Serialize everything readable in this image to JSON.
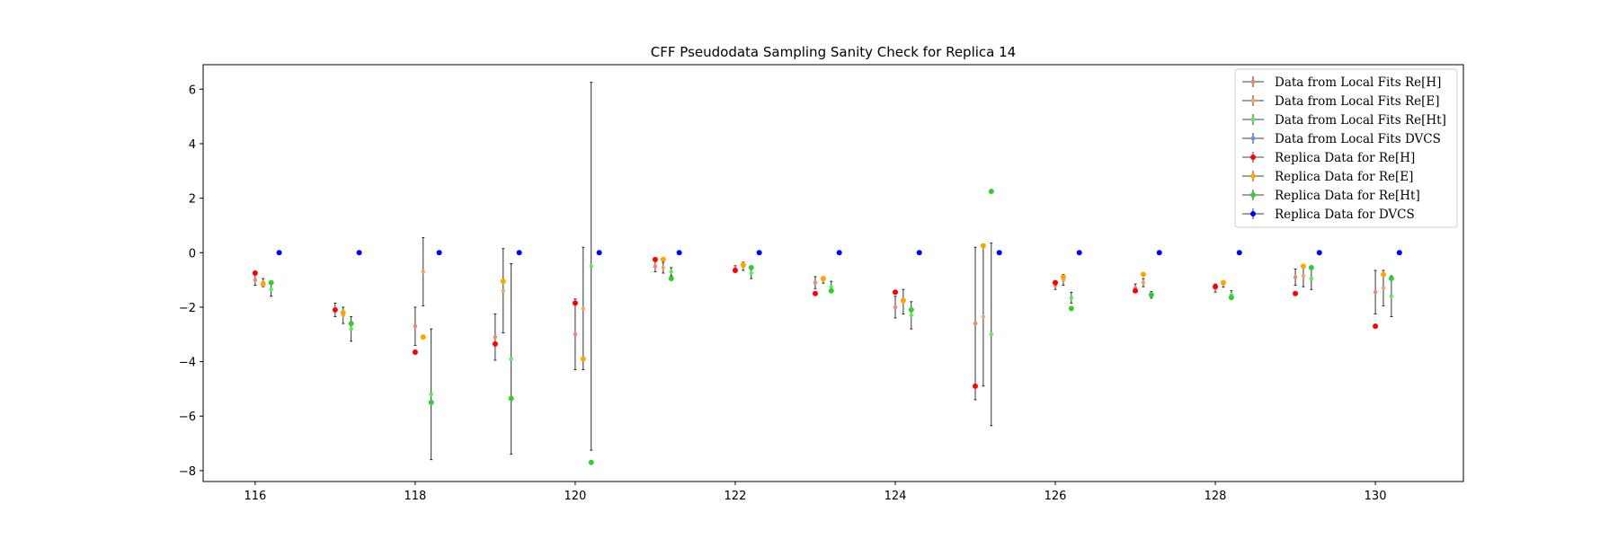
{
  "chart_data": {
    "type": "scatter",
    "title": "CFF Pseudodata Sampling Sanity Check for Replica 14",
    "xlabel": "",
    "ylabel": "",
    "xlim": [
      115.35,
      131.1
    ],
    "ylim": [
      -8.4,
      6.9
    ],
    "x_ticks": [
      116,
      118,
      120,
      122,
      124,
      126,
      128,
      130
    ],
    "y_ticks": [
      -8,
      -6,
      -4,
      -2,
      0,
      2,
      4,
      6
    ],
    "grid": false,
    "legend_position": "upper right",
    "series": [
      {
        "name": "Data from Local Fits Re[H]",
        "color": "#fa8072",
        "marker_size": "small",
        "x_offset": 0.0,
        "x": [
          116,
          117,
          118,
          119,
          120,
          121,
          122,
          123,
          124,
          125,
          126,
          127,
          128,
          129,
          130
        ],
        "y": [
          -1.0,
          -2.1,
          -2.7,
          -3.1,
          -3.0,
          -0.5,
          -0.6,
          -1.1,
          -2.0,
          -2.6,
          -1.2,
          -1.3,
          -1.3,
          -0.9,
          -1.45
        ],
        "yerr": [
          0.2,
          0.25,
          0.7,
          0.85,
          1.3,
          0.2,
          0.12,
          0.22,
          0.4,
          2.8,
          0.15,
          0.15,
          0.15,
          0.3,
          0.8
        ]
      },
      {
        "name": "Data from Local Fits Re[E]",
        "color": "#f4a460",
        "marker_size": "small",
        "x_offset": 0.1,
        "x": [
          116,
          117,
          118,
          119,
          120,
          121,
          122,
          123,
          124,
          125,
          126,
          127,
          128,
          129,
          130
        ],
        "y": [
          -1.1,
          -2.3,
          -0.7,
          -1.4,
          -2.05,
          -0.55,
          -0.5,
          -1.0,
          -1.8,
          -2.35,
          -1.0,
          -1.1,
          -1.15,
          -0.85,
          -1.3
        ],
        "yerr": [
          0.15,
          0.3,
          1.25,
          1.55,
          2.25,
          0.2,
          0.15,
          0.12,
          0.45,
          2.55,
          0.2,
          0.15,
          0.12,
          0.4,
          0.65
        ]
      },
      {
        "name": "Data from Local Fits Re[Ht]",
        "color": "#55ee55",
        "marker_size": "small",
        "x_offset": 0.2,
        "x": [
          116,
          117,
          118,
          119,
          120,
          121,
          122,
          123,
          124,
          125,
          126,
          127,
          128,
          129,
          130
        ],
        "y": [
          -1.35,
          -2.8,
          -5.2,
          -3.9,
          -0.5,
          -0.7,
          -0.75,
          -1.25,
          -2.3,
          -3.0,
          -1.65,
          -1.55,
          -1.55,
          -0.95,
          -1.6
        ],
        "yerr": [
          0.25,
          0.45,
          2.4,
          3.5,
          6.75,
          0.15,
          0.2,
          0.2,
          0.5,
          3.35,
          0.2,
          0.12,
          0.15,
          0.4,
          0.75
        ]
      },
      {
        "name": "Data from Local Fits DVCS",
        "color": "#6495ed",
        "marker_size": "small",
        "x_offset": 0.3,
        "x": [
          116,
          117,
          118,
          119,
          120,
          121,
          122,
          123,
          124,
          125,
          126,
          127,
          128,
          129,
          130
        ],
        "y": [
          0,
          0,
          0,
          0,
          0,
          0,
          0,
          0,
          0,
          0,
          0,
          0,
          0,
          0,
          0
        ],
        "yerr": [
          0,
          0,
          0,
          0,
          0,
          0,
          0,
          0,
          0,
          0,
          0,
          0,
          0,
          0,
          0
        ]
      },
      {
        "name": "Replica Data for Re[H]",
        "color": "#ff0000",
        "marker_size": "large",
        "x_offset": 0.0,
        "x": [
          116,
          117,
          118,
          119,
          120,
          121,
          122,
          123,
          124,
          125,
          126,
          127,
          128,
          129,
          130
        ],
        "y": [
          -0.75,
          -2.1,
          -3.65,
          -3.35,
          -1.85,
          -0.25,
          -0.65,
          -1.5,
          -1.45,
          -4.9,
          -1.1,
          -1.4,
          -1.25,
          -1.5,
          -2.7
        ],
        "yerr": [
          0,
          0,
          0,
          0,
          0,
          0,
          0,
          0,
          0,
          0,
          0,
          0,
          0,
          0,
          0
        ]
      },
      {
        "name": "Replica Data for Re[E]",
        "color": "#ffa500",
        "marker_size": "large",
        "x_offset": 0.1,
        "x": [
          116,
          117,
          118,
          119,
          120,
          121,
          122,
          123,
          124,
          125,
          126,
          127,
          128,
          129,
          130
        ],
        "y": [
          -1.15,
          -2.2,
          -3.1,
          -1.05,
          -3.9,
          -0.25,
          -0.45,
          -0.95,
          -1.75,
          0.25,
          -0.9,
          -0.8,
          -1.1,
          -0.5,
          -0.8
        ],
        "yerr": [
          0,
          0,
          0,
          0,
          0,
          0,
          0,
          0,
          0,
          0,
          0,
          0,
          0,
          0,
          0
        ]
      },
      {
        "name": "Replica Data for Re[Ht]",
        "color": "#32cd32",
        "marker_size": "large",
        "x_offset": 0.2,
        "x": [
          116,
          117,
          118,
          119,
          120,
          121,
          122,
          123,
          124,
          125,
          126,
          127,
          128,
          129,
          130
        ],
        "y": [
          -1.1,
          -2.6,
          -5.5,
          -5.35,
          -7.7,
          -0.95,
          -0.55,
          -1.4,
          -2.1,
          2.25,
          -2.05,
          -1.55,
          -1.65,
          -0.55,
          -0.95
        ],
        "yerr": [
          0,
          0,
          0,
          0,
          0,
          0,
          0,
          0,
          0,
          0,
          0,
          0,
          0,
          0,
          0
        ]
      },
      {
        "name": "Replica Data for DVCS",
        "color": "#0000ff",
        "marker_size": "large",
        "x_offset": 0.3,
        "x": [
          116,
          117,
          118,
          119,
          120,
          121,
          122,
          123,
          124,
          125,
          126,
          127,
          128,
          129,
          130
        ],
        "y": [
          0,
          0,
          0,
          0,
          0,
          0,
          0,
          0,
          0,
          0,
          0,
          0,
          0,
          0,
          0
        ],
        "yerr": [
          0,
          0,
          0,
          0,
          0,
          0,
          0,
          0,
          0,
          0,
          0,
          0,
          0,
          0,
          0
        ]
      }
    ]
  }
}
